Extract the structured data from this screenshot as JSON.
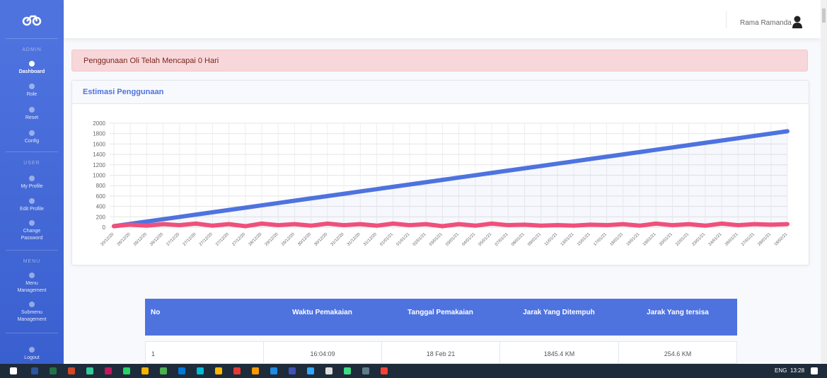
{
  "sidebar": {
    "sections": [
      {
        "heading": "ADMIN",
        "items": [
          "Dashboard",
          "Role",
          "Reset",
          "Config"
        ]
      },
      {
        "heading": "USER",
        "items": [
          "My Profile",
          "Edit Profile",
          "Change Password"
        ]
      },
      {
        "heading": "MENU",
        "items": [
          "Menu Management",
          "Submenu Management"
        ]
      }
    ],
    "logout": "Logout"
  },
  "topbar": {
    "user": "Rama Ramanda"
  },
  "alert": "Penggunaan Oli Telah Mencapai 0 Hari",
  "card": {
    "title": "Estimasi Penggunaan"
  },
  "chart_data": {
    "type": "line",
    "categories": [
      "20/12/20",
      "26/12/20",
      "26/12/20",
      "26/12/20",
      "27/12/20",
      "27/12/20",
      "27/12/20",
      "27/12/20",
      "27/12/20",
      "28/12/20",
      "29/12/20",
      "29/12/20",
      "30/12/20",
      "30/12/20",
      "31/12/20",
      "31/12/20",
      "31/12/20",
      "01/01/21",
      "01/01/21",
      "02/01/21",
      "03/01/21",
      "03/01/21",
      "04/01/21",
      "05/01/21",
      "07/01/21",
      "08/01/21",
      "09/01/21",
      "11/01/21",
      "13/01/21",
      "15/01/21",
      "17/01/21",
      "18/01/21",
      "19/01/21",
      "19/01/21",
      "20/01/21",
      "22/01/21",
      "23/01/21",
      "24/01/21",
      "26/01/21",
      "27/01/21",
      "28/01/21",
      "18/02/21"
    ],
    "series": [
      {
        "color": "#4e73df",
        "values": [
          20,
          65,
          109,
          154,
          198,
          243,
          287,
          332,
          376,
          421,
          465,
          510,
          554,
          599,
          643,
          688,
          732,
          777,
          821,
          866,
          910,
          955,
          999,
          1044,
          1088,
          1133,
          1177,
          1222,
          1266,
          1311,
          1355,
          1400,
          1444,
          1489,
          1533,
          1578,
          1622,
          1667,
          1711,
          1756,
          1800,
          1845
        ]
      },
      {
        "color": "#f0507a",
        "values": [
          20,
          50,
          30,
          60,
          40,
          70,
          30,
          60,
          20,
          70,
          40,
          60,
          30,
          70,
          40,
          60,
          30,
          70,
          40,
          60,
          20,
          60,
          30,
          70,
          40,
          50,
          30,
          40,
          30,
          50,
          40,
          60,
          30,
          70,
          40,
          60,
          30,
          70,
          40,
          60,
          50,
          60
        ]
      }
    ],
    "ylim": [
      0,
      2000
    ],
    "yticks": [
      0,
      200,
      400,
      600,
      800,
      1000,
      1200,
      1400,
      1600,
      1800,
      2000
    ],
    "grid": true
  },
  "table": {
    "headers": [
      "No",
      "Waktu Pemakaian",
      "Tanggal Pemakaian",
      "Jarak Yang Ditempuh",
      "Jarak Yang tersisa"
    ],
    "rows": [
      [
        "1",
        "16:04:09",
        "18 Feb 21",
        "1845.4 KM",
        "254.6 KM"
      ]
    ]
  },
  "taskbar": {
    "language": "ENG",
    "time": "13:28"
  }
}
